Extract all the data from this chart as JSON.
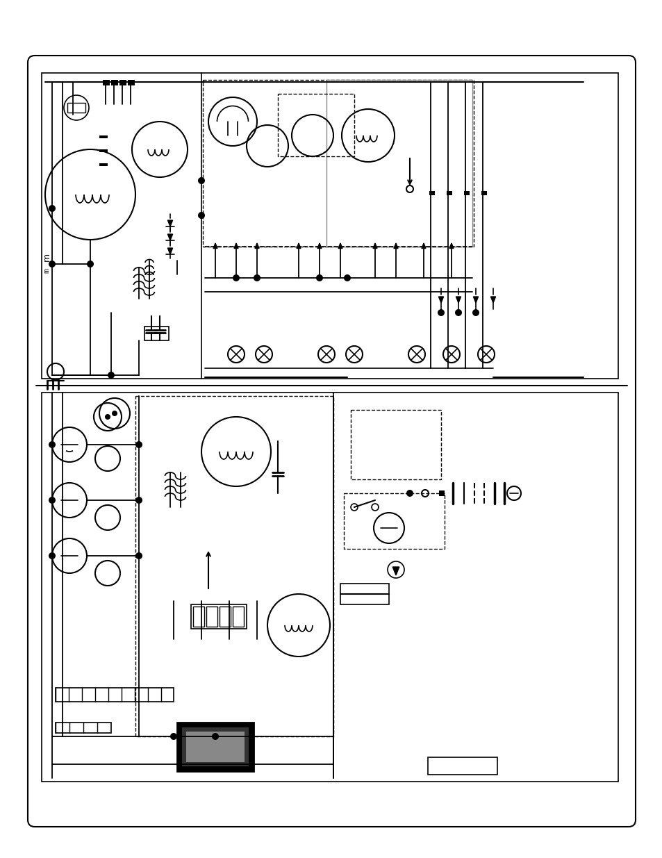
{
  "figure_width": 9.54,
  "figure_height": 12.35,
  "dpi": 100,
  "bg_color": "#ffffff",
  "line_color": "#000000",
  "gray_line": "#888888"
}
